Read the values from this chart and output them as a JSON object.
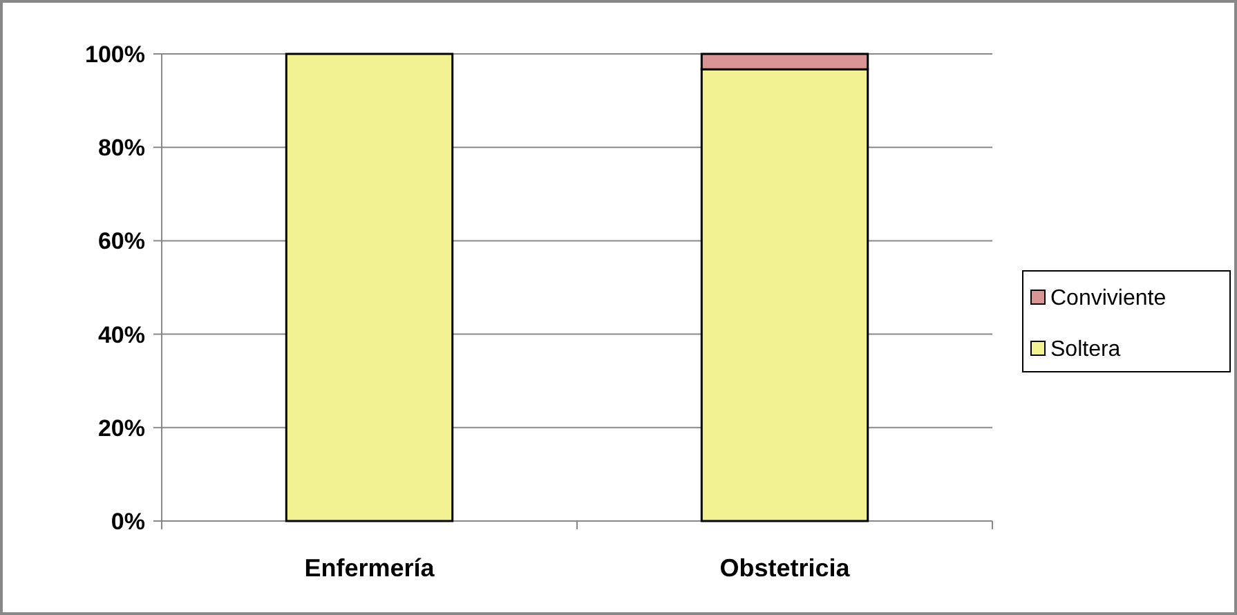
{
  "chart_data": {
    "type": "bar",
    "stacked": true,
    "categories": [
      "Enfermería",
      "Obstetricia"
    ],
    "series": [
      {
        "name": "Soltera",
        "color": "#f3f293",
        "values": [
          100,
          96.7
        ]
      },
      {
        "name": "Conviviente",
        "color": "#d99594",
        "values": [
          0,
          3.3
        ]
      }
    ],
    "ylim": [
      0,
      100
    ],
    "yticks": [
      {
        "value": 0,
        "label": "0%"
      },
      {
        "value": 20,
        "label": "20%"
      },
      {
        "value": 40,
        "label": "40%"
      },
      {
        "value": 60,
        "label": "60%"
      },
      {
        "value": 80,
        "label": "80%"
      },
      {
        "value": 100,
        "label": "100%"
      }
    ],
    "grid": "y",
    "legend": "right"
  }
}
